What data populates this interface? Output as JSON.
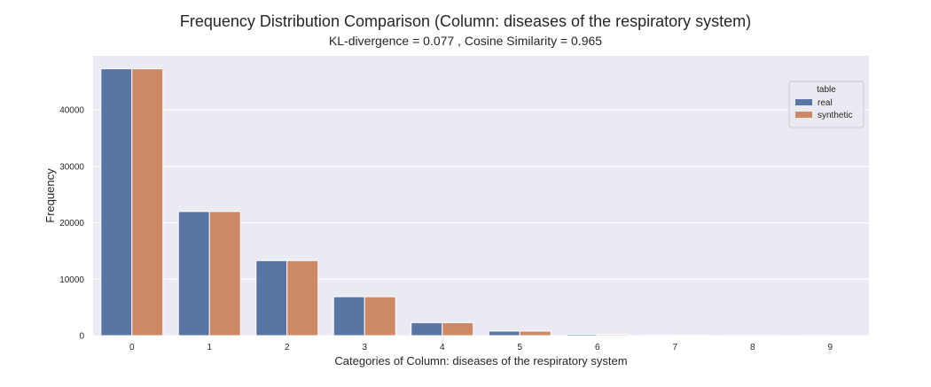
{
  "chart_data": {
    "type": "bar",
    "title": "Frequency Distribution Comparison (Column: diseases of the respiratory system)",
    "subtitle": "KL-divergence = 0.077 , Cosine Similarity = 0.965",
    "xlabel": "Categories of Column: diseases of the respiratory system",
    "ylabel": "Frequency",
    "categories": [
      "0",
      "1",
      "2",
      "3",
      "4",
      "5",
      "6",
      "7",
      "8",
      "9"
    ],
    "ylim": [
      0,
      49600
    ],
    "yticks": [
      0,
      10000,
      20000,
      30000,
      40000
    ],
    "ytick_labels": [
      "0",
      "10000",
      "20000",
      "30000",
      "40000"
    ],
    "series": [
      {
        "name": "real",
        "color": "#5875a4",
        "values": [
          47300,
          22000,
          13300,
          6900,
          2300,
          800,
          250,
          60,
          20,
          8
        ]
      },
      {
        "name": "synthetic",
        "color": "#cc8963",
        "values": [
          47300,
          22000,
          13300,
          6900,
          2300,
          800,
          200,
          50,
          15,
          5
        ]
      }
    ],
    "legend": {
      "title": "table",
      "placement": "top-right"
    },
    "grid": true,
    "background": "#eaeaf2"
  }
}
